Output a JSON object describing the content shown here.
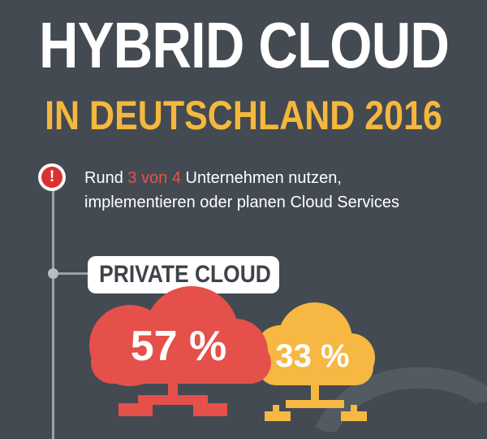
{
  "header": {
    "title_line1": "HYBRID CLOUD",
    "title_line2": "IN DEUTSCHLAND 2016"
  },
  "intro": {
    "icon": "exclamation-icon",
    "text_before": "Rund ",
    "highlight": "3 von 4",
    "text_after": " Unternehmen nutzen,",
    "line2": "implementieren oder planen Cloud Services"
  },
  "section": {
    "label": "PRIVATE CLOUD"
  },
  "clouds": [
    {
      "name": "red-cloud",
      "value": "57 %",
      "color": "#e5504a"
    },
    {
      "name": "yellow-cloud",
      "value": "33 %",
      "color": "#f6b843"
    }
  ],
  "colors": {
    "background": "#434a52",
    "accent_yellow": "#f5b83d",
    "accent_red": "#e85247",
    "alert_red": "#d9312f"
  }
}
